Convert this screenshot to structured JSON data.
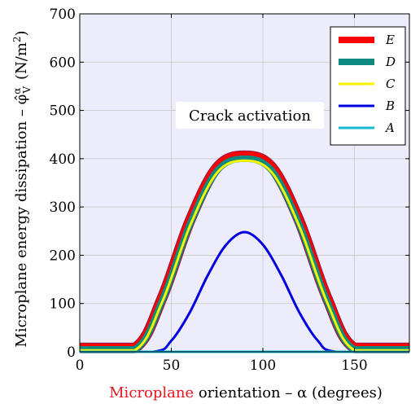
{
  "chart_data": {
    "type": "line",
    "xlabel_highlight": "Microplane",
    "xlabel_rest": " orientation – α (degrees)",
    "ylabel": "Microplane energy dissipation – φ̂",
    "ylabel_sup": "α",
    "ylabel_sub": "V",
    "ylabel_unit": "(N/m",
    "ylabel_unit_sup": "2",
    "ylabel_unit_end": ")",
    "xlim": [
      0,
      180
    ],
    "ylim": [
      0,
      700
    ],
    "xticks": [
      0,
      50,
      100,
      150
    ],
    "yticks": [
      0,
      100,
      200,
      300,
      400,
      500,
      600,
      700
    ],
    "grid": true,
    "legend_position": "top-right",
    "annotation": "Crack activation",
    "colors": {
      "background": "#ececfa",
      "grid": "#c8c8c8",
      "xlabel_highlight": "#e8141e"
    },
    "series": [
      {
        "name": "E",
        "color": "#ff0000",
        "outline": "#8b1a4a",
        "x": [
          0,
          30,
          45,
          60,
          75,
          90,
          105,
          120,
          135,
          150,
          180
        ],
        "y": [
          8,
          8,
          112,
          270,
          382,
          406,
          382,
          270,
          112,
          8,
          8
        ]
      },
      {
        "name": "D",
        "color": "#0e8a80",
        "x": [
          0,
          30,
          45,
          60,
          75,
          90,
          105,
          120,
          135,
          150,
          180
        ],
        "y": [
          5,
          5,
          106,
          263,
          375,
          400,
          375,
          263,
          106,
          5,
          5
        ]
      },
      {
        "name": "C",
        "color": "#f5f500",
        "x": [
          0,
          30,
          45,
          60,
          75,
          90,
          105,
          120,
          135,
          150,
          180
        ],
        "y": [
          3,
          3,
          103,
          259,
          371,
          396,
          371,
          259,
          103,
          3,
          3
        ]
      },
      {
        "name": "B",
        "color": "#0000e0",
        "x": [
          0,
          40,
          50,
          60,
          70,
          80,
          90,
          100,
          110,
          120,
          130,
          140,
          180
        ],
        "y": [
          0,
          0,
          23,
          81,
          159,
          222,
          248,
          222,
          159,
          81,
          23,
          0,
          0
        ]
      },
      {
        "name": "A",
        "color": "#17b8d8",
        "x": [
          0,
          180
        ],
        "y": [
          0,
          0
        ]
      }
    ]
  }
}
